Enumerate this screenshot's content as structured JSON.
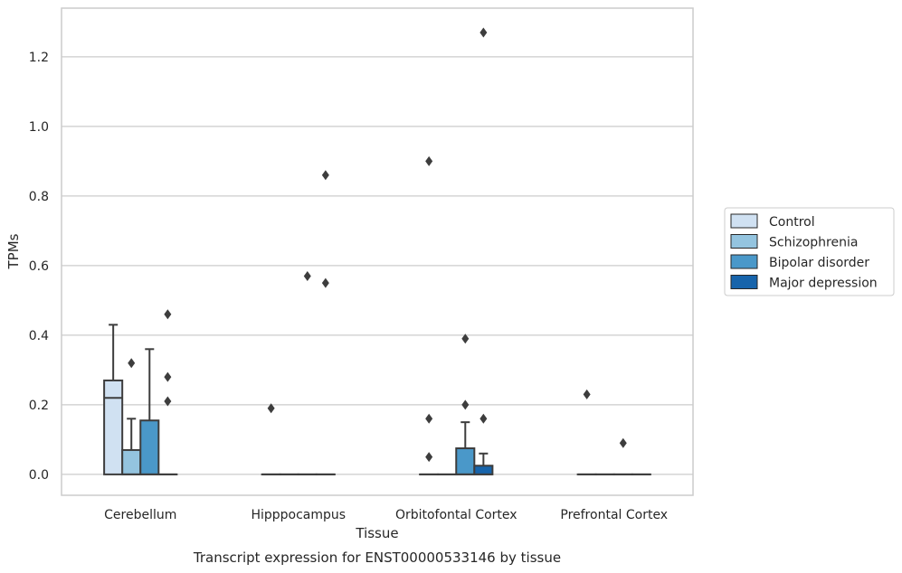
{
  "chart_data": {
    "type": "box",
    "title": "",
    "xlabel": "Tissue",
    "ylabel": "TPMs",
    "caption": "Transcript expression for ENST00000533146 by tissue",
    "categories": [
      "Cerebellum",
      "Hipppocampus",
      "Orbitofontal Cortex",
      "Prefrontal Cortex"
    ],
    "ylim": [
      -0.06,
      1.34
    ],
    "yticks": [
      0.0,
      0.2,
      0.4,
      0.6,
      0.8,
      1.0,
      1.2
    ],
    "ytick_labels": [
      "0.0",
      "0.2",
      "0.4",
      "0.6",
      "0.8",
      "1.0",
      "1.2"
    ],
    "grid": true,
    "legend_position": "right",
    "series": [
      {
        "name": "Control",
        "color": "#d0e1f2",
        "boxes": [
          {
            "q1": 0.0,
            "median": 0.22,
            "q3": 0.27,
            "whisker_low": 0.0,
            "whisker_high": 0.43,
            "outliers": []
          },
          {
            "q1": 0.0,
            "median": 0.0,
            "q3": 0.0,
            "whisker_low": 0.0,
            "whisker_high": 0.0,
            "outliers": [
              0.19
            ]
          },
          {
            "q1": 0.0,
            "median": 0.0,
            "q3": 0.0,
            "whisker_low": 0.0,
            "whisker_high": 0.0,
            "outliers": [
              0.9,
              0.16,
              0.05
            ]
          },
          {
            "q1": 0.0,
            "median": 0.0,
            "q3": 0.0,
            "whisker_low": 0.0,
            "whisker_high": 0.0,
            "outliers": [
              0.23
            ]
          }
        ]
      },
      {
        "name": "Schizophrenia",
        "color": "#94c4df",
        "boxes": [
          {
            "q1": 0.0,
            "median": 0.0,
            "q3": 0.07,
            "whisker_low": 0.0,
            "whisker_high": 0.16,
            "outliers": [
              0.32
            ]
          },
          {
            "q1": 0.0,
            "median": 0.0,
            "q3": 0.0,
            "whisker_low": 0.0,
            "whisker_high": 0.0,
            "outliers": []
          },
          {
            "q1": 0.0,
            "median": 0.0,
            "q3": 0.0,
            "whisker_low": 0.0,
            "whisker_high": 0.0,
            "outliers": []
          },
          {
            "q1": 0.0,
            "median": 0.0,
            "q3": 0.0,
            "whisker_low": 0.0,
            "whisker_high": 0.0,
            "outliers": []
          }
        ]
      },
      {
        "name": "Bipolar disorder",
        "color": "#4a98c9",
        "boxes": [
          {
            "q1": 0.0,
            "median": 0.0,
            "q3": 0.155,
            "whisker_low": 0.0,
            "whisker_high": 0.36,
            "outliers": []
          },
          {
            "q1": 0.0,
            "median": 0.0,
            "q3": 0.0,
            "whisker_low": 0.0,
            "whisker_high": 0.0,
            "outliers": [
              0.57
            ]
          },
          {
            "q1": 0.0,
            "median": 0.0,
            "q3": 0.075,
            "whisker_low": 0.0,
            "whisker_high": 0.15,
            "outliers": [
              0.39,
              0.2
            ]
          },
          {
            "q1": 0.0,
            "median": 0.0,
            "q3": 0.0,
            "whisker_low": 0.0,
            "whisker_high": 0.0,
            "outliers": [
              0.09
            ]
          }
        ]
      },
      {
        "name": "Major depression",
        "color": "#1764ab",
        "boxes": [
          {
            "q1": 0.0,
            "median": 0.0,
            "q3": 0.0,
            "whisker_low": 0.0,
            "whisker_high": 0.0,
            "outliers": [
              0.46,
              0.28,
              0.21
            ]
          },
          {
            "q1": 0.0,
            "median": 0.0,
            "q3": 0.0,
            "whisker_low": 0.0,
            "whisker_high": 0.0,
            "outliers": [
              0.86,
              0.55
            ]
          },
          {
            "q1": 0.0,
            "median": 0.0,
            "q3": 0.025,
            "whisker_low": 0.0,
            "whisker_high": 0.06,
            "outliers": [
              1.27,
              0.16
            ]
          },
          {
            "q1": 0.0,
            "median": 0.0,
            "q3": 0.0,
            "whisker_low": 0.0,
            "whisker_high": 0.0,
            "outliers": []
          }
        ]
      }
    ],
    "colors": {
      "grid": "#cccccc",
      "frame": "#cccccc",
      "box_edge": "#3d3d3d",
      "outlier": "#3d3d3d"
    }
  }
}
